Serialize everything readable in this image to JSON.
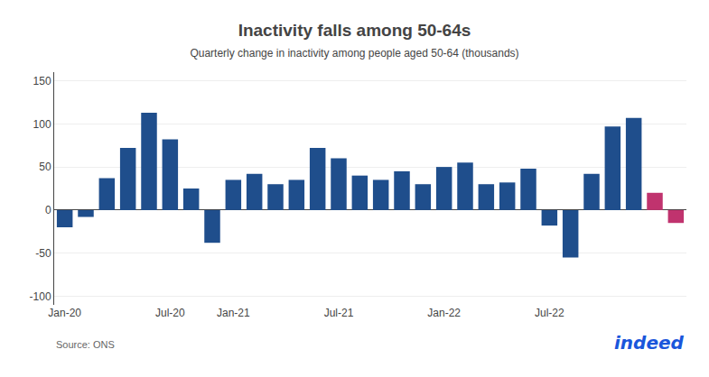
{
  "chart_data": {
    "type": "bar",
    "title": "Inactivity falls among 50-64s",
    "subtitle": "Quarterly change in inactivity among people aged 50-64 (thousands)",
    "annotations": [
      {
        "text": "Source: ONS"
      },
      {
        "text": "indeed",
        "color": "#1a56db"
      }
    ],
    "categories": [
      "Jan-20",
      null,
      null,
      null,
      null,
      "Jul-20",
      null,
      null,
      "Jan-21",
      null,
      null,
      null,
      null,
      "Jul-21",
      null,
      null,
      null,
      null,
      "Jan-22",
      null,
      null,
      null,
      null,
      "Jul-22",
      null,
      null,
      null,
      null,
      null,
      null
    ],
    "values": [
      -20,
      -8,
      37,
      72,
      113,
      82,
      25,
      -38,
      35,
      42,
      30,
      35,
      72,
      60,
      40,
      35,
      45,
      30,
      50,
      55,
      30,
      32,
      48,
      -18,
      -55,
      42,
      97,
      107,
      20,
      -15
    ],
    "colors": [
      "#1f4e8c",
      "#1f4e8c",
      "#1f4e8c",
      "#1f4e8c",
      "#1f4e8c",
      "#1f4e8c",
      "#1f4e8c",
      "#1f4e8c",
      "#1f4e8c",
      "#1f4e8c",
      "#1f4e8c",
      "#1f4e8c",
      "#1f4e8c",
      "#1f4e8c",
      "#1f4e8c",
      "#1f4e8c",
      "#1f4e8c",
      "#1f4e8c",
      "#1f4e8c",
      "#1f4e8c",
      "#1f4e8c",
      "#1f4e8c",
      "#1f4e8c",
      "#1f4e8c",
      "#1f4e8c",
      "#1f4e8c",
      "#1f4e8c",
      "#1f4e8c",
      "#c0336e",
      "#c0336e"
    ],
    "ylim": [
      -110,
      160
    ],
    "yticks": [
      -100,
      -50,
      0,
      50,
      100,
      150
    ],
    "grid": true
  }
}
